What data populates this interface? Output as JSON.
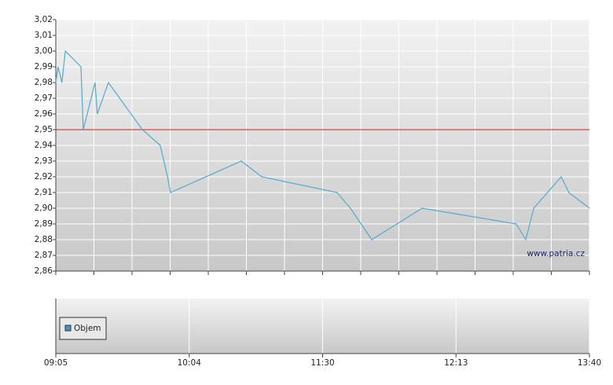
{
  "chart_data": [
    {
      "type": "line",
      "x": [
        0,
        0.06,
        0.16,
        0.25,
        0.66,
        0.72,
        1.03,
        1.09,
        1.38,
        2.27,
        2.74,
        2.93,
        3.01,
        4.87,
        5.4,
        7.38,
        7.73,
        8.29,
        9.61,
        12.08,
        12.33,
        12.54,
        13.26,
        13.46,
        14
      ],
      "series": [
        {
          "color": "#55aacc",
          "values": [
            2.98,
            2.99,
            2.98,
            3.0,
            2.99,
            2.95,
            2.98,
            2.96,
            2.98,
            2.95,
            2.94,
            2.92,
            2.91,
            2.93,
            2.92,
            2.91,
            2.9,
            2.88,
            2.9,
            2.89,
            2.88,
            2.9,
            2.92,
            2.91,
            2.9
          ]
        }
      ],
      "xlim": [
        0,
        14
      ],
      "xgrid": [
        0,
        1,
        2,
        3,
        4,
        5,
        6,
        7,
        8,
        9,
        10,
        11,
        12,
        13,
        14
      ],
      "ylim": [
        2.86,
        3.02
      ],
      "yticks": [
        {
          "value": 2.86,
          "label": "2,86"
        },
        {
          "value": 2.87,
          "label": "2,87"
        },
        {
          "value": 2.88,
          "label": "2,88"
        },
        {
          "value": 2.89,
          "label": "2,89"
        },
        {
          "value": 2.9,
          "label": "2,90"
        },
        {
          "value": 2.91,
          "label": "2,91"
        },
        {
          "value": 2.92,
          "label": "2,92"
        },
        {
          "value": 2.93,
          "label": "2,93"
        },
        {
          "value": 2.94,
          "label": "2,94"
        },
        {
          "value": 2.95,
          "label": "2,95"
        },
        {
          "value": 2.96,
          "label": "2,96"
        },
        {
          "value": 2.97,
          "label": "2,97"
        },
        {
          "value": 2.98,
          "label": "2,98"
        },
        {
          "value": 2.99,
          "label": "2,99"
        },
        {
          "value": 3.0,
          "label": "3,00"
        },
        {
          "value": 3.01,
          "label": "3,01"
        },
        {
          "value": 3.02,
          "label": "3,02"
        }
      ],
      "reference_line": {
        "value": 2.95,
        "color": "#cc2222"
      },
      "watermark": "www.patria.cz",
      "grid": true
    },
    {
      "type": "bar",
      "series": [
        {
          "name": "Objem",
          "color": "#4a90c8",
          "values": []
        }
      ],
      "xlim": [
        0,
        14
      ],
      "xticks": [
        {
          "value": 0,
          "label": "09:05"
        },
        {
          "value": 3.5,
          "label": "10:04"
        },
        {
          "value": 7,
          "label": "11:30"
        },
        {
          "value": 10.5,
          "label": "12:13"
        },
        {
          "value": 14,
          "label": "13:40"
        }
      ],
      "legend": "bottom-left"
    }
  ]
}
